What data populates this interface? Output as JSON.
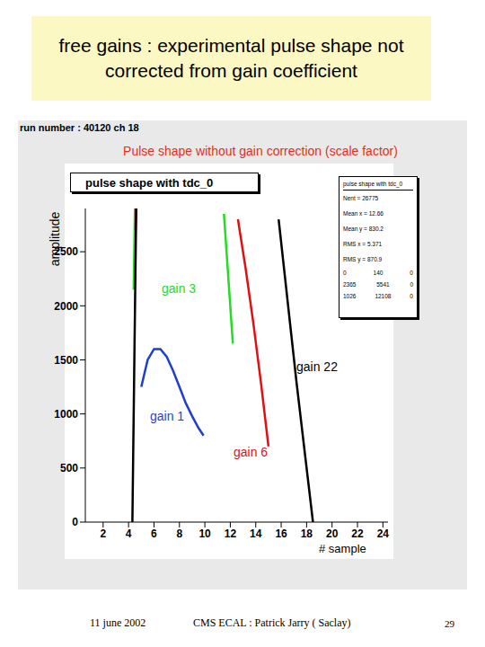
{
  "slide": {
    "title": "free gains : experimental pulse shape not corrected from gain coefficient",
    "footer": {
      "date": "11 june 2002",
      "author": "CMS ECAL : Patrick Jarry ( Saclay)",
      "page": "29"
    }
  },
  "chart_data": {
    "type": "line",
    "run_label": "run number : 40120 ch 18",
    "title": "Pulse shape without gain correction (scale factor)",
    "subtitle": "pulse shape with tdc_0",
    "xlabel": "# sample",
    "ylabel": "amplitude",
    "xlim": [
      0.6,
      24.4
    ],
    "ylim": [
      0,
      2900
    ],
    "xticks": [
      2,
      4,
      6,
      8,
      10,
      12,
      14,
      16,
      18,
      20,
      22,
      24
    ],
    "yticks": [
      0,
      500,
      1000,
      1500,
      2000,
      2500
    ],
    "grid": false,
    "series": [
      {
        "name": "gain 1",
        "color": "#1f3fd0",
        "x": [
          5.0,
          5.5,
          6.0,
          6.5,
          7.0,
          7.5,
          8.0,
          8.5,
          9.0,
          9.5,
          9.9
        ],
        "values": [
          1250,
          1500,
          1600,
          1600,
          1530,
          1400,
          1250,
          1100,
          980,
          870,
          800
        ]
      },
      {
        "name": "gain 3",
        "color": "#22dd22",
        "x": [
          4.4,
          4.5,
          8.0,
          11.5,
          11.85,
          12.2
        ],
        "values": [
          2150,
          2900,
          null,
          2850,
          2250,
          1650
        ]
      },
      {
        "name": "gain 6",
        "color": "#e01010",
        "x": [
          4.55,
          4.6,
          8.0,
          12.6,
          13.2,
          13.8,
          14.4,
          15.0
        ],
        "values": [
          2700,
          2900,
          null,
          2800,
          2350,
          1850,
          1300,
          700
        ]
      },
      {
        "name": "gain 22",
        "color": "#000000",
        "x": [
          4.3,
          4.45,
          4.6,
          10.0,
          15.8,
          16.5,
          17.2,
          17.9,
          18.5
        ],
        "values": [
          0,
          1450,
          2900,
          null,
          2800,
          2050,
          1300,
          600,
          0
        ]
      }
    ],
    "stats_box": {
      "title": "pulse shape with tdc_0",
      "entries": [
        "Nent = 26775",
        "Mean x = 12.66",
        "Mean y = 830.2",
        "RMS x = 5.371",
        "RMS y = 870.9"
      ],
      "grid": [
        [
          0,
          140,
          0
        ],
        [
          2365,
          5541,
          0
        ],
        [
          1026,
          12108,
          0
        ]
      ]
    }
  }
}
